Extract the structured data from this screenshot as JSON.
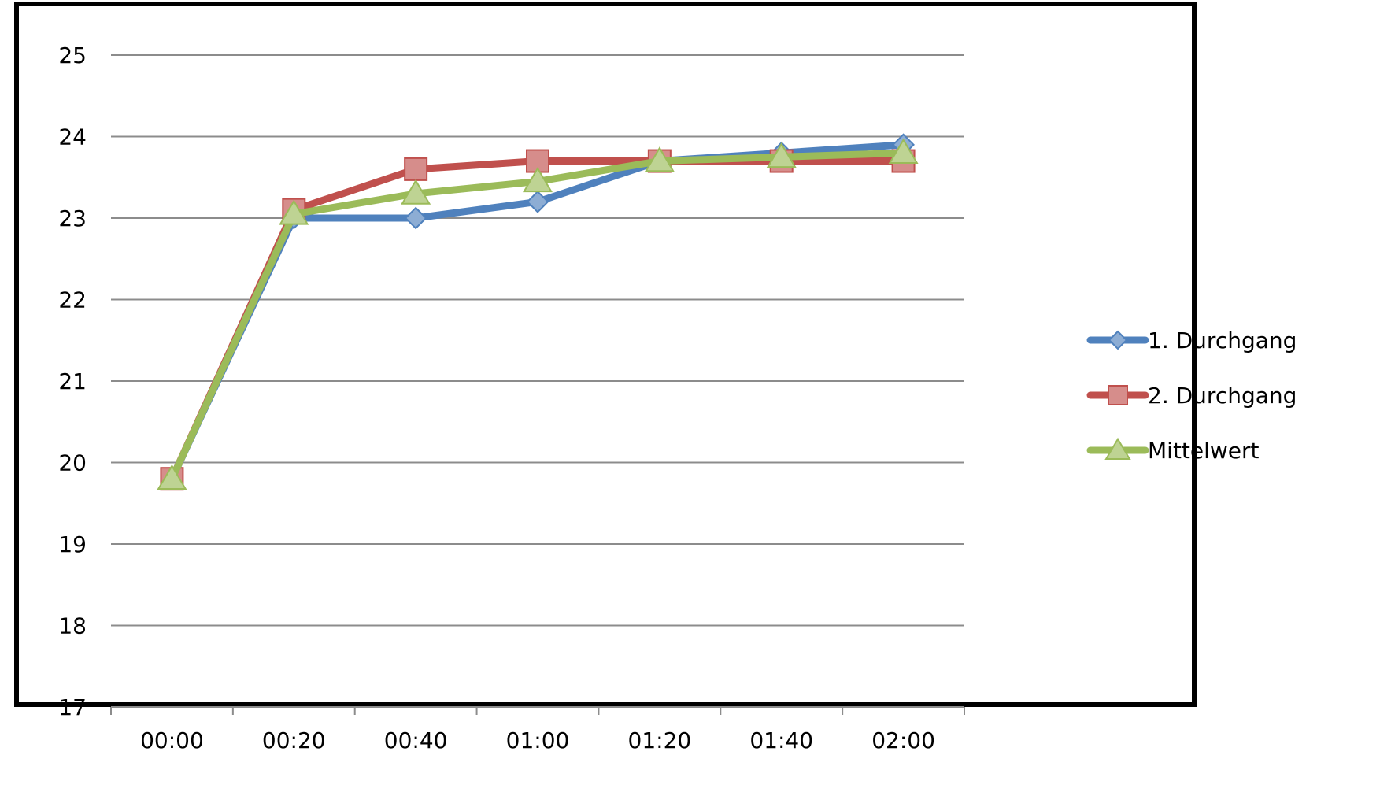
{
  "chart_data": {
    "type": "line",
    "title": "",
    "xlabel": "",
    "ylabel": "",
    "categories": [
      "00:00",
      "00:20",
      "00:40",
      "01:00",
      "01:20",
      "01:40",
      "02:00"
    ],
    "ylim": [
      17,
      25
    ],
    "yticks": [
      17,
      18,
      19,
      20,
      21,
      22,
      23,
      24,
      25
    ],
    "grid": true,
    "legend_position": "right",
    "series": [
      {
        "name": "1. Durchgang",
        "values": [
          19.8,
          23.0,
          23.0,
          23.2,
          23.7,
          23.8,
          23.9
        ],
        "color": "#4f81bd",
        "marker": "diamond"
      },
      {
        "name": "2. Durchgang",
        "values": [
          19.8,
          23.1,
          23.6,
          23.7,
          23.7,
          23.7,
          23.7
        ],
        "color": "#c0504d",
        "marker": "square"
      },
      {
        "name": "Mittelwert",
        "values": [
          19.8,
          23.05,
          23.3,
          23.45,
          23.7,
          23.75,
          23.8
        ],
        "color": "#9bbb59",
        "marker": "triangle"
      }
    ]
  }
}
